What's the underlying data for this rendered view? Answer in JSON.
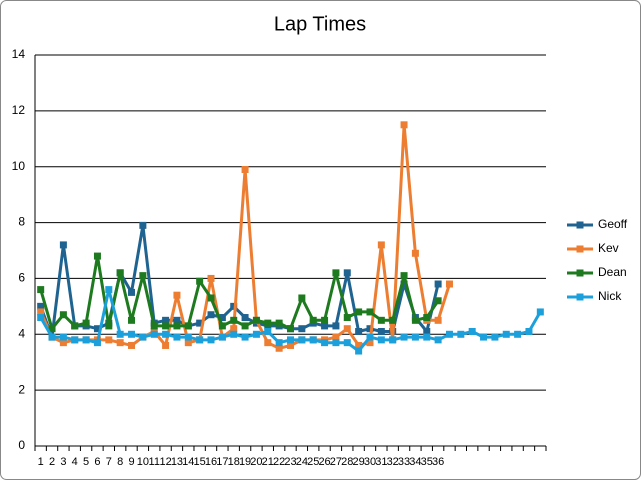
{
  "chart_data": {
    "type": "line",
    "title": "Lap Times",
    "categories": [
      "1",
      "2",
      "3",
      "4",
      "5",
      "6",
      "7",
      "8",
      "9",
      "10",
      "11",
      "12",
      "13",
      "14",
      "15",
      "16",
      "17",
      "18",
      "19",
      "20",
      "21",
      "22",
      "23",
      "24",
      "25",
      "26",
      "27",
      "28",
      "29",
      "30",
      "31",
      "32",
      "33",
      "34",
      "35",
      "36",
      null,
      null,
      null,
      null,
      null,
      null,
      null,
      null,
      null
    ],
    "series": [
      {
        "name": "Geoff",
        "color": "#1f6391",
        "values": [
          5.0,
          3.9,
          7.2,
          4.3,
          4.3,
          4.2,
          4.4,
          6.2,
          5.5,
          7.9,
          4.4,
          4.5,
          4.5,
          4.3,
          4.4,
          4.7,
          4.6,
          5.0,
          4.6,
          4.4,
          4.3,
          4.3,
          4.2,
          4.2,
          4.4,
          4.3,
          4.3,
          6.2,
          4.1,
          4.2,
          4.1,
          4.1,
          5.8,
          4.6,
          4.1,
          5.8,
          null,
          null,
          null,
          null,
          null,
          null,
          null,
          null,
          null
        ]
      },
      {
        "name": "Kev",
        "color": "#ed7d31",
        "values": [
          4.8,
          3.9,
          3.7,
          3.8,
          3.8,
          3.8,
          3.8,
          3.7,
          3.6,
          3.9,
          4.1,
          3.6,
          5.4,
          3.7,
          3.8,
          6.0,
          3.9,
          4.2,
          9.9,
          4.5,
          3.7,
          3.5,
          3.6,
          3.8,
          3.8,
          3.8,
          3.9,
          4.2,
          3.6,
          3.7,
          7.2,
          3.8,
          11.5,
          6.9,
          4.5,
          4.5,
          5.8,
          null,
          null,
          null,
          null,
          null,
          null,
          null,
          null
        ]
      },
      {
        "name": "Dean",
        "color": "#1e7a1e",
        "values": [
          5.6,
          4.2,
          4.7,
          4.3,
          4.4,
          6.8,
          4.3,
          6.2,
          4.5,
          6.1,
          4.3,
          4.3,
          4.3,
          4.3,
          5.9,
          5.3,
          4.3,
          4.5,
          4.3,
          4.5,
          4.4,
          4.4,
          4.2,
          5.3,
          4.5,
          4.5,
          6.2,
          4.6,
          4.8,
          4.8,
          4.5,
          4.5,
          6.1,
          4.5,
          4.6,
          5.2,
          null,
          null,
          null,
          null,
          null,
          null,
          null,
          null,
          null
        ]
      },
      {
        "name": "Nick",
        "color": "#1ca0dc",
        "values": [
          4.6,
          3.9,
          3.9,
          3.8,
          3.8,
          3.7,
          5.6,
          4.0,
          4.0,
          3.9,
          4.0,
          4.0,
          3.9,
          3.9,
          3.8,
          3.8,
          3.9,
          4.0,
          3.9,
          4.0,
          4.1,
          3.7,
          3.8,
          3.8,
          3.8,
          3.7,
          3.7,
          3.7,
          3.4,
          3.9,
          3.8,
          3.8,
          3.9,
          3.9,
          3.9,
          3.8,
          4.0,
          4.0,
          4.1,
          3.9,
          3.9,
          4.0,
          4.0,
          4.1,
          4.8
        ]
      }
    ],
    "ylim": [
      0,
      14
    ],
    "yticks": [
      0,
      2,
      4,
      6,
      8,
      10,
      12,
      14
    ],
    "grid": true,
    "legend": "right"
  }
}
